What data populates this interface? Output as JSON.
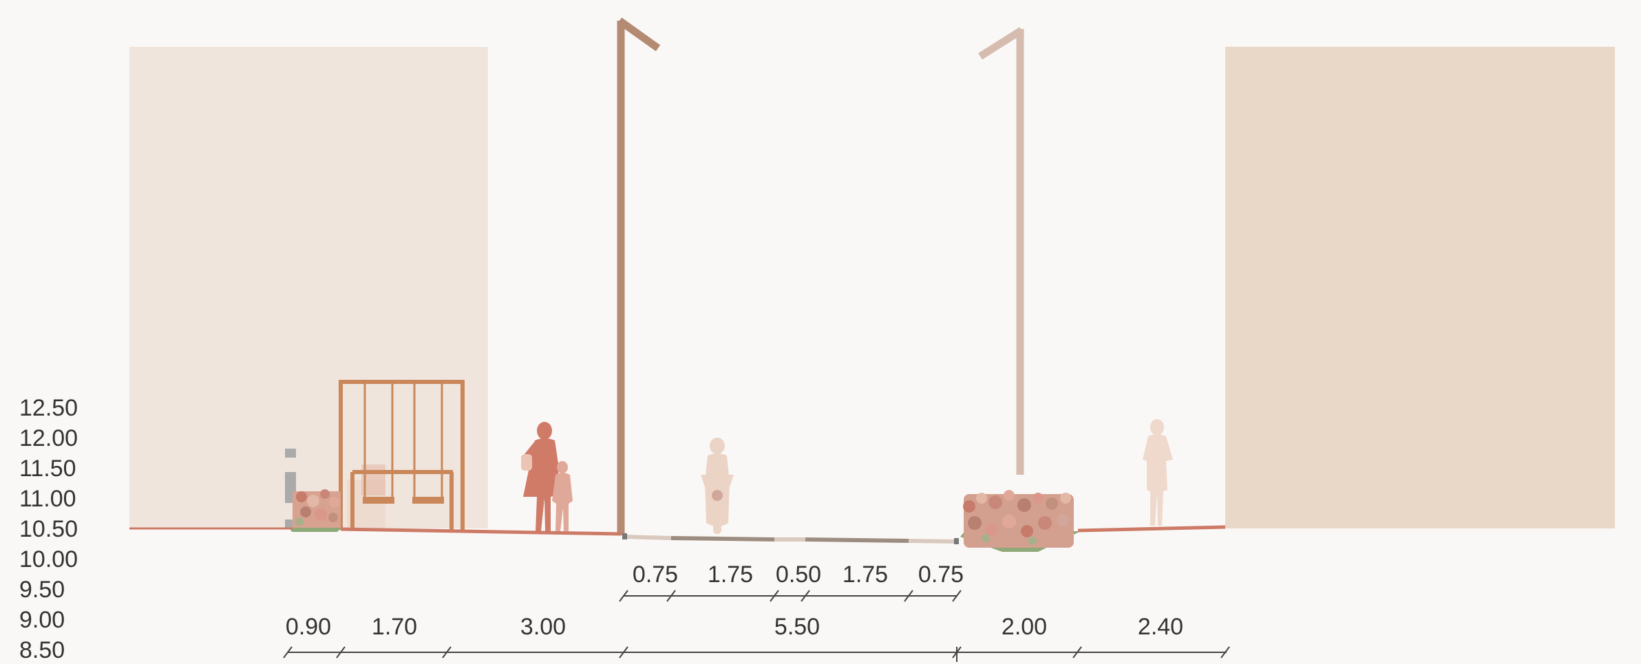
{
  "elevation_labels": [
    "12.50",
    "12.00",
    "11.50",
    "11.00",
    "10.50",
    "10.00",
    "9.50",
    "9.00",
    "8.50"
  ],
  "carriageway_dimensions": [
    "0.75",
    "1.75",
    "0.50",
    "1.75",
    "0.75"
  ],
  "overall_dimensions": [
    "0.90",
    "1.70",
    "3.00",
    "5.50",
    "2.00",
    "2.40"
  ],
  "colors": {
    "background": "#faf8f7",
    "building_left": "#f0e5dc",
    "building_right": "#e9d7c8",
    "ground_line": "#cd7a66",
    "lamp_left": "#b48a72",
    "lamp_right": "#d5bcae",
    "swing_frame": "#c9875a",
    "pedestrian_main": "#d07a68",
    "pedestrian_child": "#e0a898",
    "pedestrian_faded": "#efd9cc",
    "planting_green": "#8ea877",
    "text": "#333333"
  },
  "icons": [
    "street-lamp-icon",
    "swing-icon",
    "mother-child-silhouette-icon",
    "scooter-rider-silhouette-icon",
    "pedestrian-silhouette-icon",
    "planting-bed-icon",
    "bollard-icon"
  ]
}
